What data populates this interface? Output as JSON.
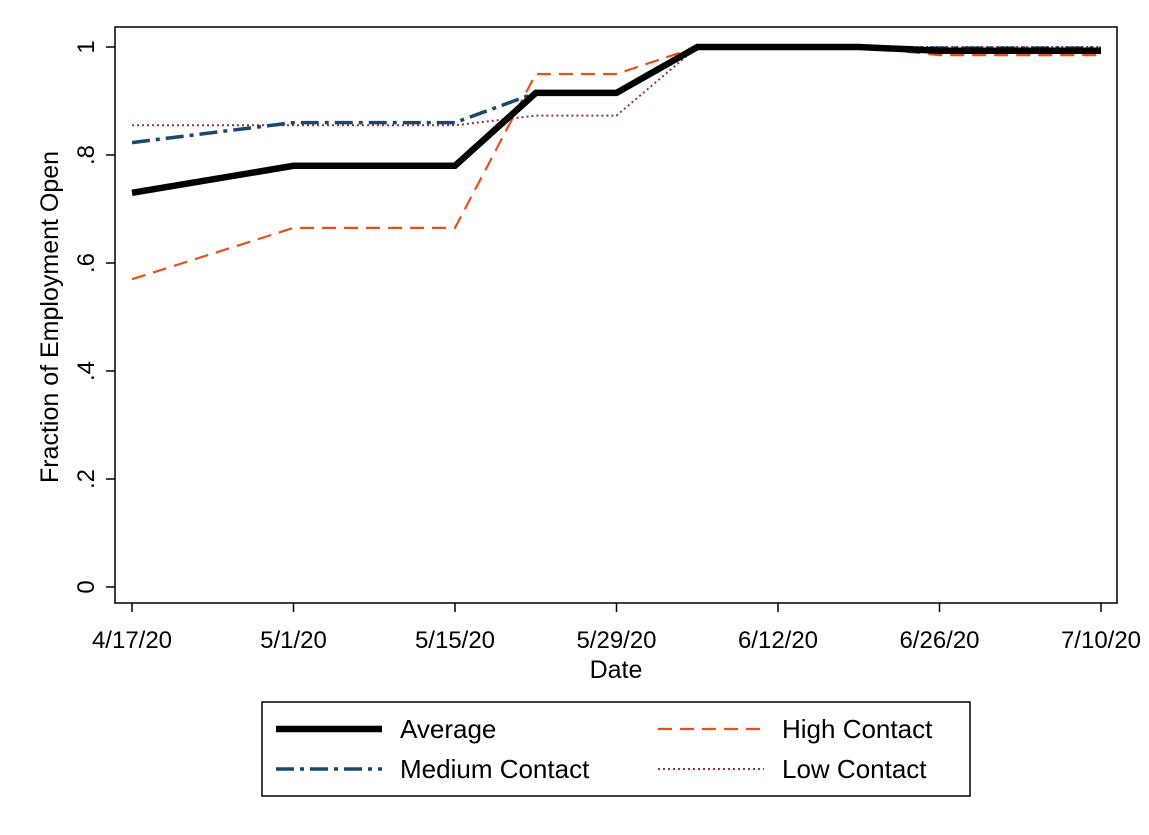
{
  "chart_data": {
    "type": "line",
    "xlabel": "Date",
    "ylabel": "Fraction of Employment Open",
    "x": [
      "4/17/20",
      "5/1/20",
      "5/15/20",
      "5/22/20",
      "5/29/20",
      "6/5/20",
      "6/12/20",
      "6/19/20",
      "6/26/20",
      "7/3/20",
      "7/10/20"
    ],
    "x_ticks": [
      "4/17/20",
      "5/1/20",
      "5/15/20",
      "5/29/20",
      "6/12/20",
      "6/26/20",
      "7/10/20"
    ],
    "y_ticks": [
      {
        "value": 0,
        "label": "0"
      },
      {
        "value": 0.2,
        "label": ".2"
      },
      {
        "value": 0.4,
        "label": ".4"
      },
      {
        "value": 0.6,
        "label": ".6"
      },
      {
        "value": 0.8,
        "label": ".8"
      },
      {
        "value": 1,
        "label": "1"
      }
    ],
    "ylim": [
      0,
      1
    ],
    "grid": false,
    "legend_position": "bottom",
    "series": [
      {
        "name": "Average",
        "color": "#000000",
        "style": "solid",
        "values": [
          0.73,
          0.78,
          0.78,
          0.915,
          0.915,
          1.0,
          1.0,
          1.0,
          0.993,
          0.993,
          0.993
        ]
      },
      {
        "name": "Medium Contact",
        "color": "#1a476f",
        "style": "dashdot",
        "values": [
          0.823,
          0.86,
          0.86,
          0.915,
          0.915,
          1.0,
          1.0,
          1.0,
          0.998,
          0.998,
          0.998
        ]
      },
      {
        "name": "High Contact",
        "color": "#e8501a",
        "style": "dash",
        "values": [
          0.57,
          0.665,
          0.665,
          0.95,
          0.95,
          1.0,
          1.0,
          1.0,
          0.985,
          0.985,
          0.985
        ]
      },
      {
        "name": "Low Contact",
        "color": "#90353b",
        "style": "dot",
        "values": [
          0.855,
          0.855,
          0.855,
          0.873,
          0.873,
          1.0,
          1.0,
          1.0,
          1.0,
          1.0,
          1.0
        ]
      }
    ],
    "legend": [
      "Average",
      "High Contact",
      "Medium Contact",
      "Low Contact"
    ]
  }
}
